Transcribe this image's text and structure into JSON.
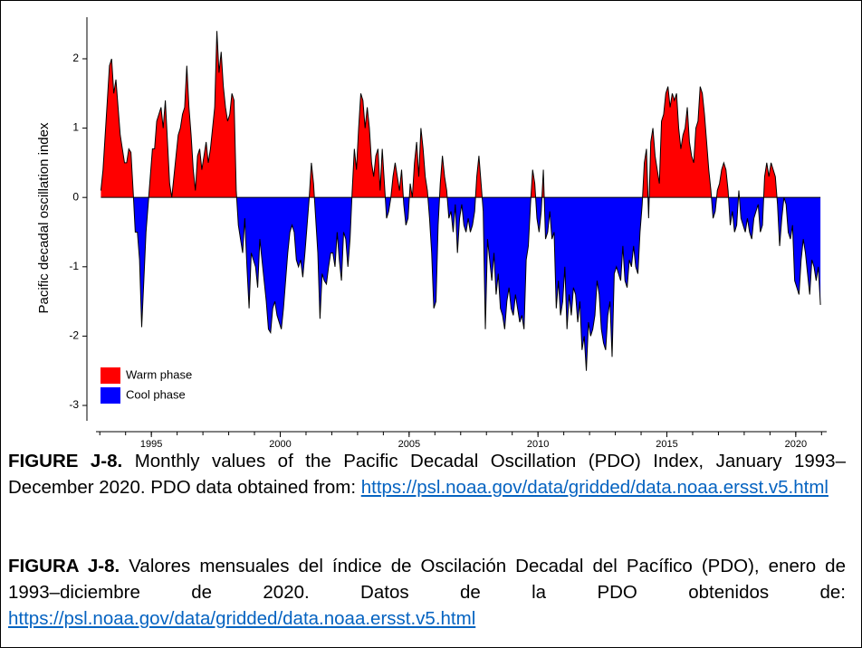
{
  "chart_data": {
    "type": "area",
    "y_label": "Pacific decadal oscillation index",
    "x": [
      1993.042,
      1993.125,
      1993.208,
      1993.292,
      1993.375,
      1993.458,
      1993.542,
      1993.625,
      1993.708,
      1993.792,
      1993.875,
      1993.958,
      1994.042,
      1994.125,
      1994.208,
      1994.292,
      1994.375,
      1994.458,
      1994.542,
      1994.625,
      1994.708,
      1994.792,
      1994.875,
      1994.958,
      1995.042,
      1995.125,
      1995.208,
      1995.292,
      1995.375,
      1995.458,
      1995.542,
      1995.625,
      1995.708,
      1995.792,
      1995.875,
      1995.958,
      1996.042,
      1996.125,
      1996.208,
      1996.292,
      1996.375,
      1996.458,
      1996.542,
      1996.625,
      1996.708,
      1996.792,
      1996.875,
      1996.958,
      1997.042,
      1997.125,
      1997.208,
      1997.292,
      1997.375,
      1997.458,
      1997.542,
      1997.625,
      1997.708,
      1997.792,
      1997.875,
      1997.958,
      1998.042,
      1998.125,
      1998.208,
      1998.292,
      1998.375,
      1998.458,
      1998.542,
      1998.625,
      1998.708,
      1998.792,
      1998.875,
      1998.958,
      1999.042,
      1999.125,
      1999.208,
      1999.292,
      1999.375,
      1999.458,
      1999.542,
      1999.625,
      1999.708,
      1999.792,
      1999.875,
      1999.958,
      2000.042,
      2000.125,
      2000.208,
      2000.292,
      2000.375,
      2000.458,
      2000.542,
      2000.625,
      2000.708,
      2000.792,
      2000.875,
      2000.958,
      2001.042,
      2001.125,
      2001.208,
      2001.292,
      2001.375,
      2001.458,
      2001.542,
      2001.625,
      2001.708,
      2001.792,
      2001.875,
      2001.958,
      2002.042,
      2002.125,
      2002.208,
      2002.292,
      2002.375,
      2002.458,
      2002.542,
      2002.625,
      2002.708,
      2002.792,
      2002.875,
      2002.958,
      2003.042,
      2003.125,
      2003.208,
      2003.292,
      2003.375,
      2003.458,
      2003.542,
      2003.625,
      2003.708,
      2003.792,
      2003.875,
      2003.958,
      2004.042,
      2004.125,
      2004.208,
      2004.292,
      2004.375,
      2004.458,
      2004.542,
      2004.625,
      2004.708,
      2004.792,
      2004.875,
      2004.958,
      2005.042,
      2005.125,
      2005.208,
      2005.292,
      2005.375,
      2005.458,
      2005.542,
      2005.625,
      2005.708,
      2005.792,
      2005.875,
      2005.958,
      2006.042,
      2006.125,
      2006.208,
      2006.292,
      2006.375,
      2006.458,
      2006.542,
      2006.625,
      2006.708,
      2006.792,
      2006.875,
      2006.958,
      2007.042,
      2007.125,
      2007.208,
      2007.292,
      2007.375,
      2007.458,
      2007.542,
      2007.625,
      2007.708,
      2007.792,
      2007.875,
      2007.958,
      2008.042,
      2008.125,
      2008.208,
      2008.292,
      2008.375,
      2008.458,
      2008.542,
      2008.625,
      2008.708,
      2008.792,
      2008.875,
      2008.958,
      2009.042,
      2009.125,
      2009.208,
      2009.292,
      2009.375,
      2009.458,
      2009.542,
      2009.625,
      2009.708,
      2009.792,
      2009.875,
      2009.958,
      2010.042,
      2010.125,
      2010.208,
      2010.292,
      2010.375,
      2010.458,
      2010.542,
      2010.625,
      2010.708,
      2010.792,
      2010.875,
      2010.958,
      2011.042,
      2011.125,
      2011.208,
      2011.292,
      2011.375,
      2011.458,
      2011.542,
      2011.625,
      2011.708,
      2011.792,
      2011.875,
      2011.958,
      2012.042,
      2012.125,
      2012.208,
      2012.292,
      2012.375,
      2012.458,
      2012.542,
      2012.625,
      2012.708,
      2012.792,
      2012.875,
      2012.958,
      2013.042,
      2013.125,
      2013.208,
      2013.292,
      2013.375,
      2013.458,
      2013.542,
      2013.625,
      2013.708,
      2013.792,
      2013.875,
      2013.958,
      2014.042,
      2014.125,
      2014.208,
      2014.292,
      2014.375,
      2014.458,
      2014.542,
      2014.625,
      2014.708,
      2014.792,
      2014.875,
      2014.958,
      2015.042,
      2015.125,
      2015.208,
      2015.292,
      2015.375,
      2015.458,
      2015.542,
      2015.625,
      2015.708,
      2015.792,
      2015.875,
      2015.958,
      2016.042,
      2016.125,
      2016.208,
      2016.292,
      2016.375,
      2016.458,
      2016.542,
      2016.625,
      2016.708,
      2016.792,
      2016.875,
      2016.958,
      2017.042,
      2017.125,
      2017.208,
      2017.292,
      2017.375,
      2017.458,
      2017.542,
      2017.625,
      2017.708,
      2017.792,
      2017.875,
      2017.958,
      2018.042,
      2018.125,
      2018.208,
      2018.292,
      2018.375,
      2018.458,
      2018.542,
      2018.625,
      2018.708,
      2018.792,
      2018.875,
      2018.958,
      2019.042,
      2019.125,
      2019.208,
      2019.292,
      2019.375,
      2019.458,
      2019.542,
      2019.625,
      2019.708,
      2019.792,
      2019.875,
      2019.958,
      2020.042,
      2020.125,
      2020.208,
      2020.292,
      2020.375,
      2020.458,
      2020.542,
      2020.625,
      2020.708,
      2020.792,
      2020.875,
      2020.958
    ],
    "values": [
      0.1,
      0.4,
      0.9,
      1.4,
      1.9,
      2.0,
      1.5,
      1.7,
      1.3,
      0.9,
      0.7,
      0.5,
      0.5,
      0.7,
      0.65,
      0.1,
      -0.5,
      -0.5,
      -0.9,
      -1.87,
      -1.2,
      -0.5,
      -0.1,
      0.3,
      0.7,
      0.7,
      1.1,
      1.2,
      1.3,
      1.0,
      1.4,
      0.8,
      0.2,
      0.0,
      0.3,
      0.6,
      0.9,
      1.0,
      1.2,
      1.3,
      1.9,
      1.3,
      0.9,
      0.4,
      0.1,
      0.6,
      0.7,
      0.4,
      0.6,
      0.8,
      0.5,
      0.7,
      1.0,
      1.3,
      2.4,
      1.8,
      2.1,
      1.6,
      1.3,
      1.1,
      1.2,
      1.5,
      1.4,
      0.1,
      -0.4,
      -0.6,
      -0.8,
      -0.3,
      -1.0,
      -1.6,
      -0.8,
      -0.9,
      -1.0,
      -1.3,
      -0.6,
      -0.9,
      -1.2,
      -1.5,
      -1.9,
      -1.95,
      -1.6,
      -1.5,
      -1.7,
      -1.8,
      -1.9,
      -1.6,
      -1.2,
      -0.8,
      -0.5,
      -0.4,
      -0.5,
      -0.9,
      -1.0,
      -0.9,
      -1.15,
      -0.8,
      -0.4,
      0.0,
      0.5,
      0.2,
      -0.3,
      -0.8,
      -1.75,
      -1.1,
      -1.2,
      -1.25,
      -1.0,
      -0.8,
      -0.8,
      -1.0,
      -0.5,
      -0.9,
      -1.2,
      -0.5,
      -0.6,
      -1.0,
      -0.6,
      0.1,
      0.7,
      0.4,
      1.0,
      1.5,
      1.4,
      1.0,
      1.3,
      1.0,
      0.5,
      0.3,
      0.6,
      0.7,
      0.1,
      0.7,
      0.2,
      -0.3,
      -0.2,
      0.0,
      0.3,
      0.5,
      0.3,
      0.1,
      0.4,
      -0.1,
      -0.4,
      -0.3,
      0.2,
      0.0,
      0.5,
      0.8,
      0.3,
      1.0,
      0.7,
      0.3,
      0.1,
      -0.3,
      -0.8,
      -1.6,
      -1.5,
      -0.4,
      0.2,
      0.6,
      0.3,
      0.1,
      -0.3,
      -0.2,
      -0.5,
      -0.1,
      -0.8,
      -0.3,
      -0.1,
      -0.4,
      -0.5,
      -0.3,
      -0.5,
      -0.4,
      -0.2,
      0.3,
      0.6,
      0.2,
      -0.2,
      -1.9,
      -0.6,
      -0.9,
      -1.2,
      -0.8,
      -1.4,
      -1.1,
      -1.6,
      -1.7,
      -1.9,
      -1.5,
      -1.3,
      -1.6,
      -1.7,
      -1.4,
      -1.6,
      -1.8,
      -1.7,
      -1.9,
      -0.9,
      -0.7,
      -0.1,
      0.4,
      0.2,
      -0.3,
      -0.5,
      -0.2,
      0.4,
      -0.6,
      -0.5,
      -0.2,
      -0.6,
      -0.5,
      -1.6,
      -1.2,
      -1.7,
      -1.5,
      -1.0,
      -1.9,
      -1.4,
      -1.7,
      -1.3,
      -1.4,
      -1.8,
      -1.5,
      -2.2,
      -2.0,
      -2.5,
      -1.8,
      -2.0,
      -1.9,
      -1.7,
      -1.2,
      -1.4,
      -1.9,
      -2.1,
      -2.2,
      -1.7,
      -1.5,
      -2.3,
      -1.1,
      -1.0,
      -1.1,
      -1.2,
      -0.7,
      -1.2,
      -1.3,
      -0.9,
      -1.0,
      -0.7,
      -1.0,
      -1.1,
      -0.5,
      -0.1,
      0.5,
      0.7,
      -0.3,
      0.8,
      1.0,
      0.6,
      0.4,
      0.2,
      1.1,
      1.2,
      1.5,
      1.6,
      1.3,
      1.5,
      1.4,
      1.5,
      1.0,
      0.7,
      0.9,
      1.0,
      1.3,
      0.8,
      0.6,
      0.5,
      1.0,
      1.1,
      1.6,
      1.5,
      1.2,
      0.8,
      0.4,
      0.1,
      -0.3,
      -0.2,
      0.1,
      0.2,
      0.4,
      0.5,
      0.4,
      0.1,
      -0.4,
      -0.2,
      -0.5,
      -0.4,
      0.1,
      -0.3,
      -0.4,
      -0.5,
      -0.3,
      -0.5,
      -0.6,
      -0.3,
      -0.2,
      -0.1,
      -0.5,
      -0.4,
      0.3,
      0.5,
      0.3,
      0.5,
      0.4,
      0.3,
      -0.1,
      -0.7,
      -0.3,
      0.0,
      -0.1,
      -0.5,
      -0.6,
      -0.4,
      -1.2,
      -1.3,
      -1.4,
      -0.9,
      -0.6,
      -0.8,
      -1.1,
      -1.4,
      -0.9,
      -1.0,
      -1.2,
      -1.0,
      -1.55
    ],
    "legend": [
      {
        "name": "Warm phase",
        "color": "#ff0000"
      },
      {
        "name": "Cool phase",
        "color": "#0000ff"
      }
    ],
    "legend_position": "lower left",
    "xlim": [
      1992.5,
      2021.2
    ],
    "xticks": [
      1995,
      2000,
      2005,
      2010,
      2015,
      2020
    ],
    "ylim": [
      -3.3,
      2.6
    ],
    "yticks": [
      -3,
      -2,
      -1,
      0,
      1,
      2
    ]
  },
  "caption": {
    "english": {
      "label": "FIGURE J-8.",
      "text": "Monthly values of the Pacific Decadal Oscillation (PDO) Index, January 1993–December 2020. PDO data obtained from:",
      "link": "https://psl.noaa.gov/data/gridded/data.noaa.ersst.v5.html"
    },
    "spanish": {
      "label": "FIGURA J-8.",
      "text": "Valores mensuales del índice de Oscilación Decadal del Pacífico (PDO), enero de 1993–diciembre de 2020. Datos de la PDO obtenidos de:",
      "link": "https://psl.noaa.gov/data/gridded/data.noaa.ersst.v5.html"
    }
  }
}
